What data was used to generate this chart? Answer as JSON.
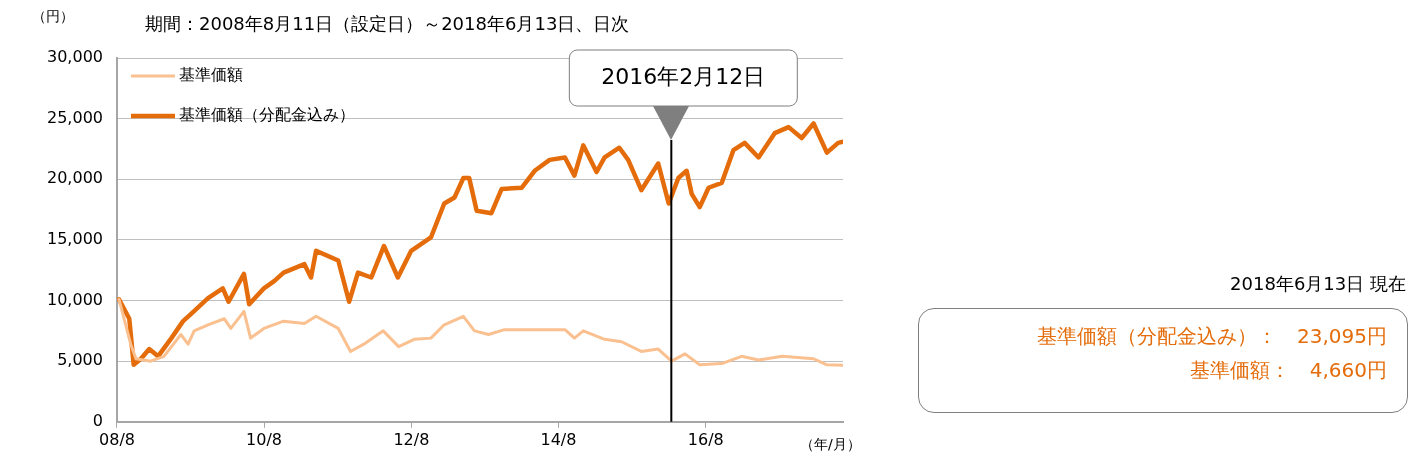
{
  "chart_data": {
    "type": "line",
    "title": "期間：2008年8月11日（設定日）～2018年6月13日、日次",
    "ylabel": "（円）",
    "xlabel": "（年/月）",
    "series": [
      {
        "name": "基準価額",
        "color": "#fac090",
        "x": [
          "2008-08-11",
          "2008-10-08",
          "2008-11-03",
          "2009-01-15",
          "2009-03-22",
          "2009-06-14",
          "2009-07-20",
          "2009-08-19",
          "2009-10-27",
          "2010-01-15",
          "2010-02-17",
          "2010-04-23",
          "2010-05-26",
          "2010-07-31",
          "2010-11-06",
          "2011-02-17",
          "2011-04-16",
          "2011-08-04",
          "2011-10-04",
          "2011-12-09",
          "2012-03-14",
          "2012-05-30",
          "2012-08-15",
          "2012-11-06",
          "2013-01-11",
          "2013-04-16",
          "2013-06-10",
          "2013-08-19",
          "2013-11-06",
          "2014-04-23",
          "2014-09-02",
          "2014-10-19",
          "2014-12-02",
          "2015-03-18",
          "2015-06-10",
          "2015-09-16",
          "2015-12-09",
          "2016-02-13",
          "2016-04-20",
          "2016-07-02",
          "2016-10-19",
          "2017-01-26",
          "2017-04-20",
          "2017-08-15",
          "2018-01-18",
          "2018-03-25",
          "2018-06-13"
        ],
        "values": [
          10100,
          6400,
          5200,
          5000,
          5400,
          7200,
          6400,
          7500,
          8000,
          8500,
          7700,
          9100,
          6900,
          7700,
          8300,
          8100,
          8700,
          7700,
          5800,
          6400,
          7500,
          6200,
          6800,
          6900,
          8000,
          8700,
          7500,
          7200,
          7600,
          7600,
          7600,
          6900,
          7500,
          6800,
          6600,
          5800,
          6000,
          5000,
          5600,
          4700,
          4800,
          5400,
          5100,
          5400,
          5200,
          4700,
          4660
        ]
      },
      {
        "name": "基準価額（分配金込み）",
        "color": "#e46c0a",
        "x": [
          "2008-08-11",
          "2008-10-01",
          "2008-10-23",
          "2008-11-28",
          "2009-01-08",
          "2009-02-21",
          "2009-04-28",
          "2009-06-25",
          "2009-08-04",
          "2009-10-27",
          "2010-01-08",
          "2010-02-06",
          "2010-04-23",
          "2010-05-19",
          "2010-07-31",
          "2010-09-20",
          "2010-11-06",
          "2011-02-17",
          "2011-03-22",
          "2011-04-16",
          "2011-08-04",
          "2011-09-27",
          "2011-11-10",
          "2012-01-15",
          "2012-03-18",
          "2012-05-26",
          "2012-07-31",
          "2012-11-06",
          "2013-01-11",
          "2013-03-03",
          "2013-04-16",
          "2013-05-15",
          "2013-06-21",
          "2013-09-02",
          "2013-10-23",
          "2014-01-30",
          "2014-04-05",
          "2014-06-18",
          "2014-09-02",
          "2014-10-19",
          "2014-12-02",
          "2015-02-06",
          "2015-03-18",
          "2015-05-30",
          "2015-07-13",
          "2015-09-16",
          "2015-12-09",
          "2016-01-30",
          "2016-03-18",
          "2016-04-28",
          "2016-05-23",
          "2016-07-02",
          "2016-08-15",
          "2016-10-19",
          "2016-12-16",
          "2017-02-10",
          "2017-04-20",
          "2017-07-09",
          "2017-09-16",
          "2017-11-20",
          "2018-01-18",
          "2018-03-25",
          "2018-05-20",
          "2018-06-13"
        ],
        "values": [
          10100,
          8500,
          4700,
          5200,
          6000,
          5400,
          6900,
          8300,
          8900,
          10200,
          11000,
          9900,
          12200,
          9700,
          11000,
          11600,
          12300,
          13000,
          11900,
          14100,
          13300,
          9900,
          12300,
          11900,
          14500,
          11900,
          14100,
          15200,
          18000,
          18500,
          20100,
          20100,
          17400,
          17200,
          19200,
          19300,
          20700,
          21600,
          21800,
          20300,
          22800,
          20600,
          21800,
          22600,
          21600,
          19100,
          21300,
          18000,
          20100,
          20700,
          18800,
          17700,
          19300,
          19700,
          22400,
          23000,
          21800,
          23800,
          24300,
          23400,
          24600,
          22200,
          23000,
          23095
        ]
      }
    ],
    "xlim": [
      "2008-08-01",
      "2018-06-13"
    ],
    "xticks": [
      {
        "value": "2008-08-01",
        "label": "08/8"
      },
      {
        "value": "2010-08-01",
        "label": "10/8"
      },
      {
        "value": "2012-08-01",
        "label": "12/8"
      },
      {
        "value": "2014-08-01",
        "label": "14/8"
      },
      {
        "value": "2016-08-01",
        "label": "16/8"
      }
    ],
    "ylim": [
      0,
      30000
    ],
    "yticks": [
      0,
      {
        "value": 5000,
        "label": "5,000"
      },
      {
        "value": 10000,
        "label": "10,000"
      },
      {
        "value": 15000,
        "label": "15,000"
      },
      {
        "value": 20000,
        "label": "20,000"
      },
      {
        "value": 25000,
        "label": "25,000"
      },
      {
        "value": 30000,
        "label": "30,000"
      }
    ],
    "ref_lines": [
      {
        "axis": "x",
        "value": "2016-02-12",
        "label": "2016年2月12日",
        "color": "#000000"
      }
    ],
    "grid": "y",
    "legend": "top left",
    "annotations": [
      "2018年6月13日 現在",
      "基準価額（分配金込み）：　23,095円",
      "基準価額：　4,660円"
    ]
  }
}
